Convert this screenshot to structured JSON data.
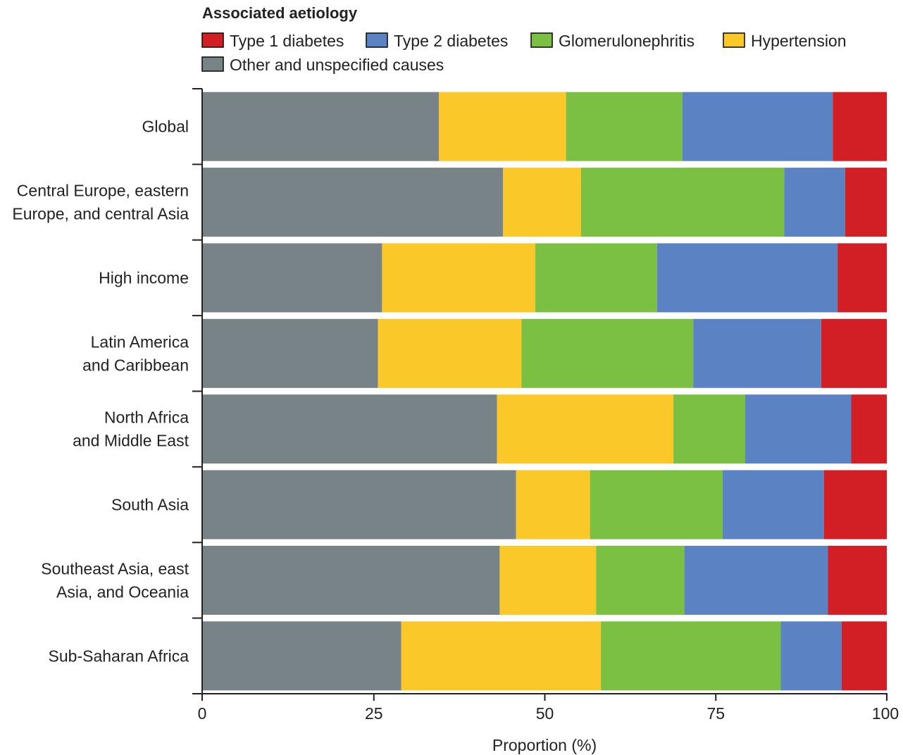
{
  "chart_data": {
    "type": "bar",
    "orientation": "horizontal",
    "stacked": true,
    "legend_title": "Associated aetiology",
    "legend_placement": "top",
    "legend": [
      {
        "key": "t1",
        "label": "Type 1 diabetes",
        "color": "#d21f26"
      },
      {
        "key": "t2",
        "label": "Type 2 diabetes",
        "color": "#5b83c4"
      },
      {
        "key": "gn",
        "label": "Glomerulonephritis",
        "color": "#7bc043"
      },
      {
        "key": "ht",
        "label": "Hypertension",
        "color": "#fbc82a"
      },
      {
        "key": "ot",
        "label": "Other and unspecified causes",
        "color": "#788388"
      }
    ],
    "stack_order": [
      "ot",
      "ht",
      "gn",
      "t2",
      "t1"
    ],
    "categories": [
      [
        "Global"
      ],
      [
        "Central Europe, eastern",
        "Europe, and central Asia"
      ],
      [
        "High income"
      ],
      [
        "Latin America",
        "and  Caribbean"
      ],
      [
        "North Africa",
        "and Middle East"
      ],
      [
        "South Asia"
      ],
      [
        "Southeast Asia, east",
        "Asia, and Oceania"
      ],
      [
        "Sub-Saharan Africa"
      ]
    ],
    "series": [
      {
        "key": "ot",
        "name": "Other and unspecified causes",
        "values": [
          34.5,
          43.9,
          26.2,
          25.6,
          43.0,
          45.8,
          43.4,
          29.0
        ]
      },
      {
        "key": "ht",
        "name": "Hypertension",
        "values": [
          18.6,
          11.4,
          22.4,
          21.0,
          25.8,
          10.8,
          14.1,
          29.2
        ]
      },
      {
        "key": "gn",
        "name": "Glomerulonephritis",
        "values": [
          17.0,
          29.7,
          17.8,
          25.1,
          10.5,
          19.4,
          12.9,
          26.3
        ]
      },
      {
        "key": "t2",
        "name": "Type 2 diabetes",
        "values": [
          22.0,
          8.9,
          26.4,
          18.7,
          15.5,
          14.8,
          21.0,
          8.9
        ]
      },
      {
        "key": "t1",
        "name": "Type 1 diabetes",
        "values": [
          7.9,
          6.1,
          7.2,
          9.6,
          5.2,
          9.2,
          8.6,
          6.6
        ]
      }
    ],
    "x_ticks": [
      "0",
      "25",
      "50",
      "75",
      "100"
    ],
    "xlim": [
      0,
      100
    ],
    "xlabel": "Proportion (%)",
    "ylabel": "",
    "title": "",
    "grid": false
  }
}
